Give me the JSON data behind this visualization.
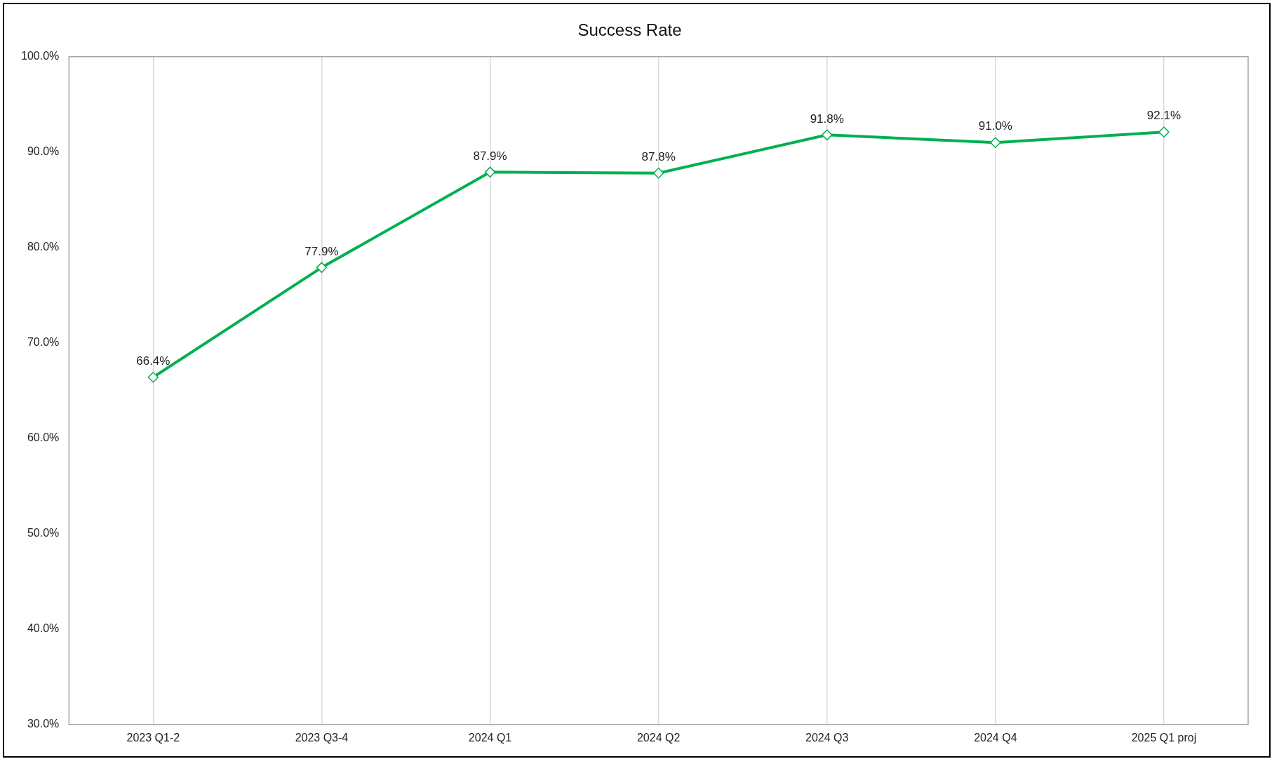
{
  "chart_data": {
    "type": "line",
    "title": "Success Rate",
    "categories": [
      "2023 Q1-2",
      "2023 Q3-4",
      "2024 Q1",
      "2024 Q2",
      "2024 Q3",
      "2024 Q4",
      "2025 Q1 proj"
    ],
    "series": [
      {
        "color": "#00b050",
        "values": [
          66.4,
          77.9,
          87.9,
          87.8,
          91.8,
          91.0,
          92.1
        ],
        "value_labels": [
          "66.4%",
          "77.9%",
          "87.9%",
          "87.8%",
          "91.8%",
          "91.0%",
          "92.1%"
        ]
      }
    ],
    "ylim": [
      30,
      100
    ],
    "yticks": [
      {
        "value": 30,
        "label": "30.0%"
      },
      {
        "value": 40,
        "label": "40.0%"
      },
      {
        "value": 50,
        "label": "50.0%"
      },
      {
        "value": 60,
        "label": "60.0%"
      },
      {
        "value": 70,
        "label": "70.0%"
      },
      {
        "value": 80,
        "label": "80.0%"
      },
      {
        "value": 90,
        "label": "90.0%"
      },
      {
        "value": 100,
        "label": "100.0%"
      }
    ],
    "grid": "x",
    "legend": false,
    "marker": "diamond",
    "line_style": "solid"
  }
}
